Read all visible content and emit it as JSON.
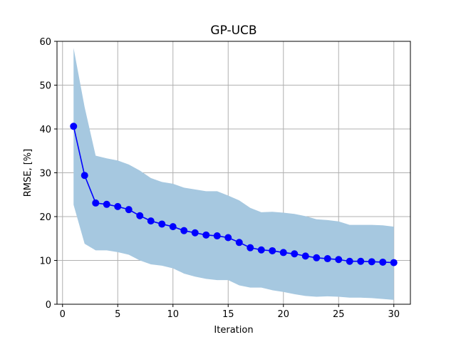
{
  "chart_data": {
    "type": "line",
    "title": "GP-UCB",
    "xlabel": "Iteration",
    "ylabel": "RMSE, [%]",
    "xlim": [
      -0.5,
      31.5
    ],
    "ylim": [
      0,
      60
    ],
    "xticks": [
      0,
      5,
      10,
      15,
      20,
      25,
      30
    ],
    "yticks": [
      0,
      10,
      20,
      30,
      40,
      50,
      60
    ],
    "grid": true,
    "x": [
      1,
      2,
      3,
      4,
      5,
      6,
      7,
      8,
      9,
      10,
      11,
      12,
      13,
      14,
      15,
      16,
      17,
      18,
      19,
      20,
      21,
      22,
      23,
      24,
      25,
      26,
      27,
      28,
      29,
      30
    ],
    "series": [
      {
        "values": [
          40.6,
          29.4,
          23.1,
          22.8,
          22.3,
          21.6,
          20.2,
          19.0,
          18.3,
          17.7,
          16.8,
          16.3,
          15.8,
          15.6,
          15.2,
          14.1,
          12.9,
          12.4,
          12.2,
          11.8,
          11.5,
          11.0,
          10.6,
          10.4,
          10.2,
          9.8,
          9.8,
          9.7,
          9.6,
          9.5
        ],
        "color": "#0000ff",
        "marker": "circle"
      }
    ],
    "band": {
      "upper": [
        58.5,
        45.0,
        33.9,
        33.3,
        32.8,
        31.9,
        30.5,
        28.8,
        27.9,
        27.5,
        26.6,
        26.2,
        25.8,
        25.8,
        24.8,
        23.7,
        22.0,
        21.0,
        21.1,
        20.9,
        20.6,
        20.1,
        19.4,
        19.2,
        18.9,
        18.1,
        18.1,
        18.1,
        18.0,
        17.7
      ],
      "lower": [
        22.7,
        13.8,
        12.3,
        12.3,
        11.9,
        11.3,
        10.0,
        9.1,
        8.8,
        8.2,
        7.0,
        6.3,
        5.8,
        5.5,
        5.5,
        4.3,
        3.8,
        3.8,
        3.2,
        2.8,
        2.3,
        1.9,
        1.7,
        1.8,
        1.7,
        1.5,
        1.5,
        1.4,
        1.2,
        1.0
      ],
      "color": "#a6c8e0"
    },
    "colors": {
      "line": "#0000ff",
      "band": "#a6c8e0",
      "grid": "#b0b0b0"
    }
  }
}
